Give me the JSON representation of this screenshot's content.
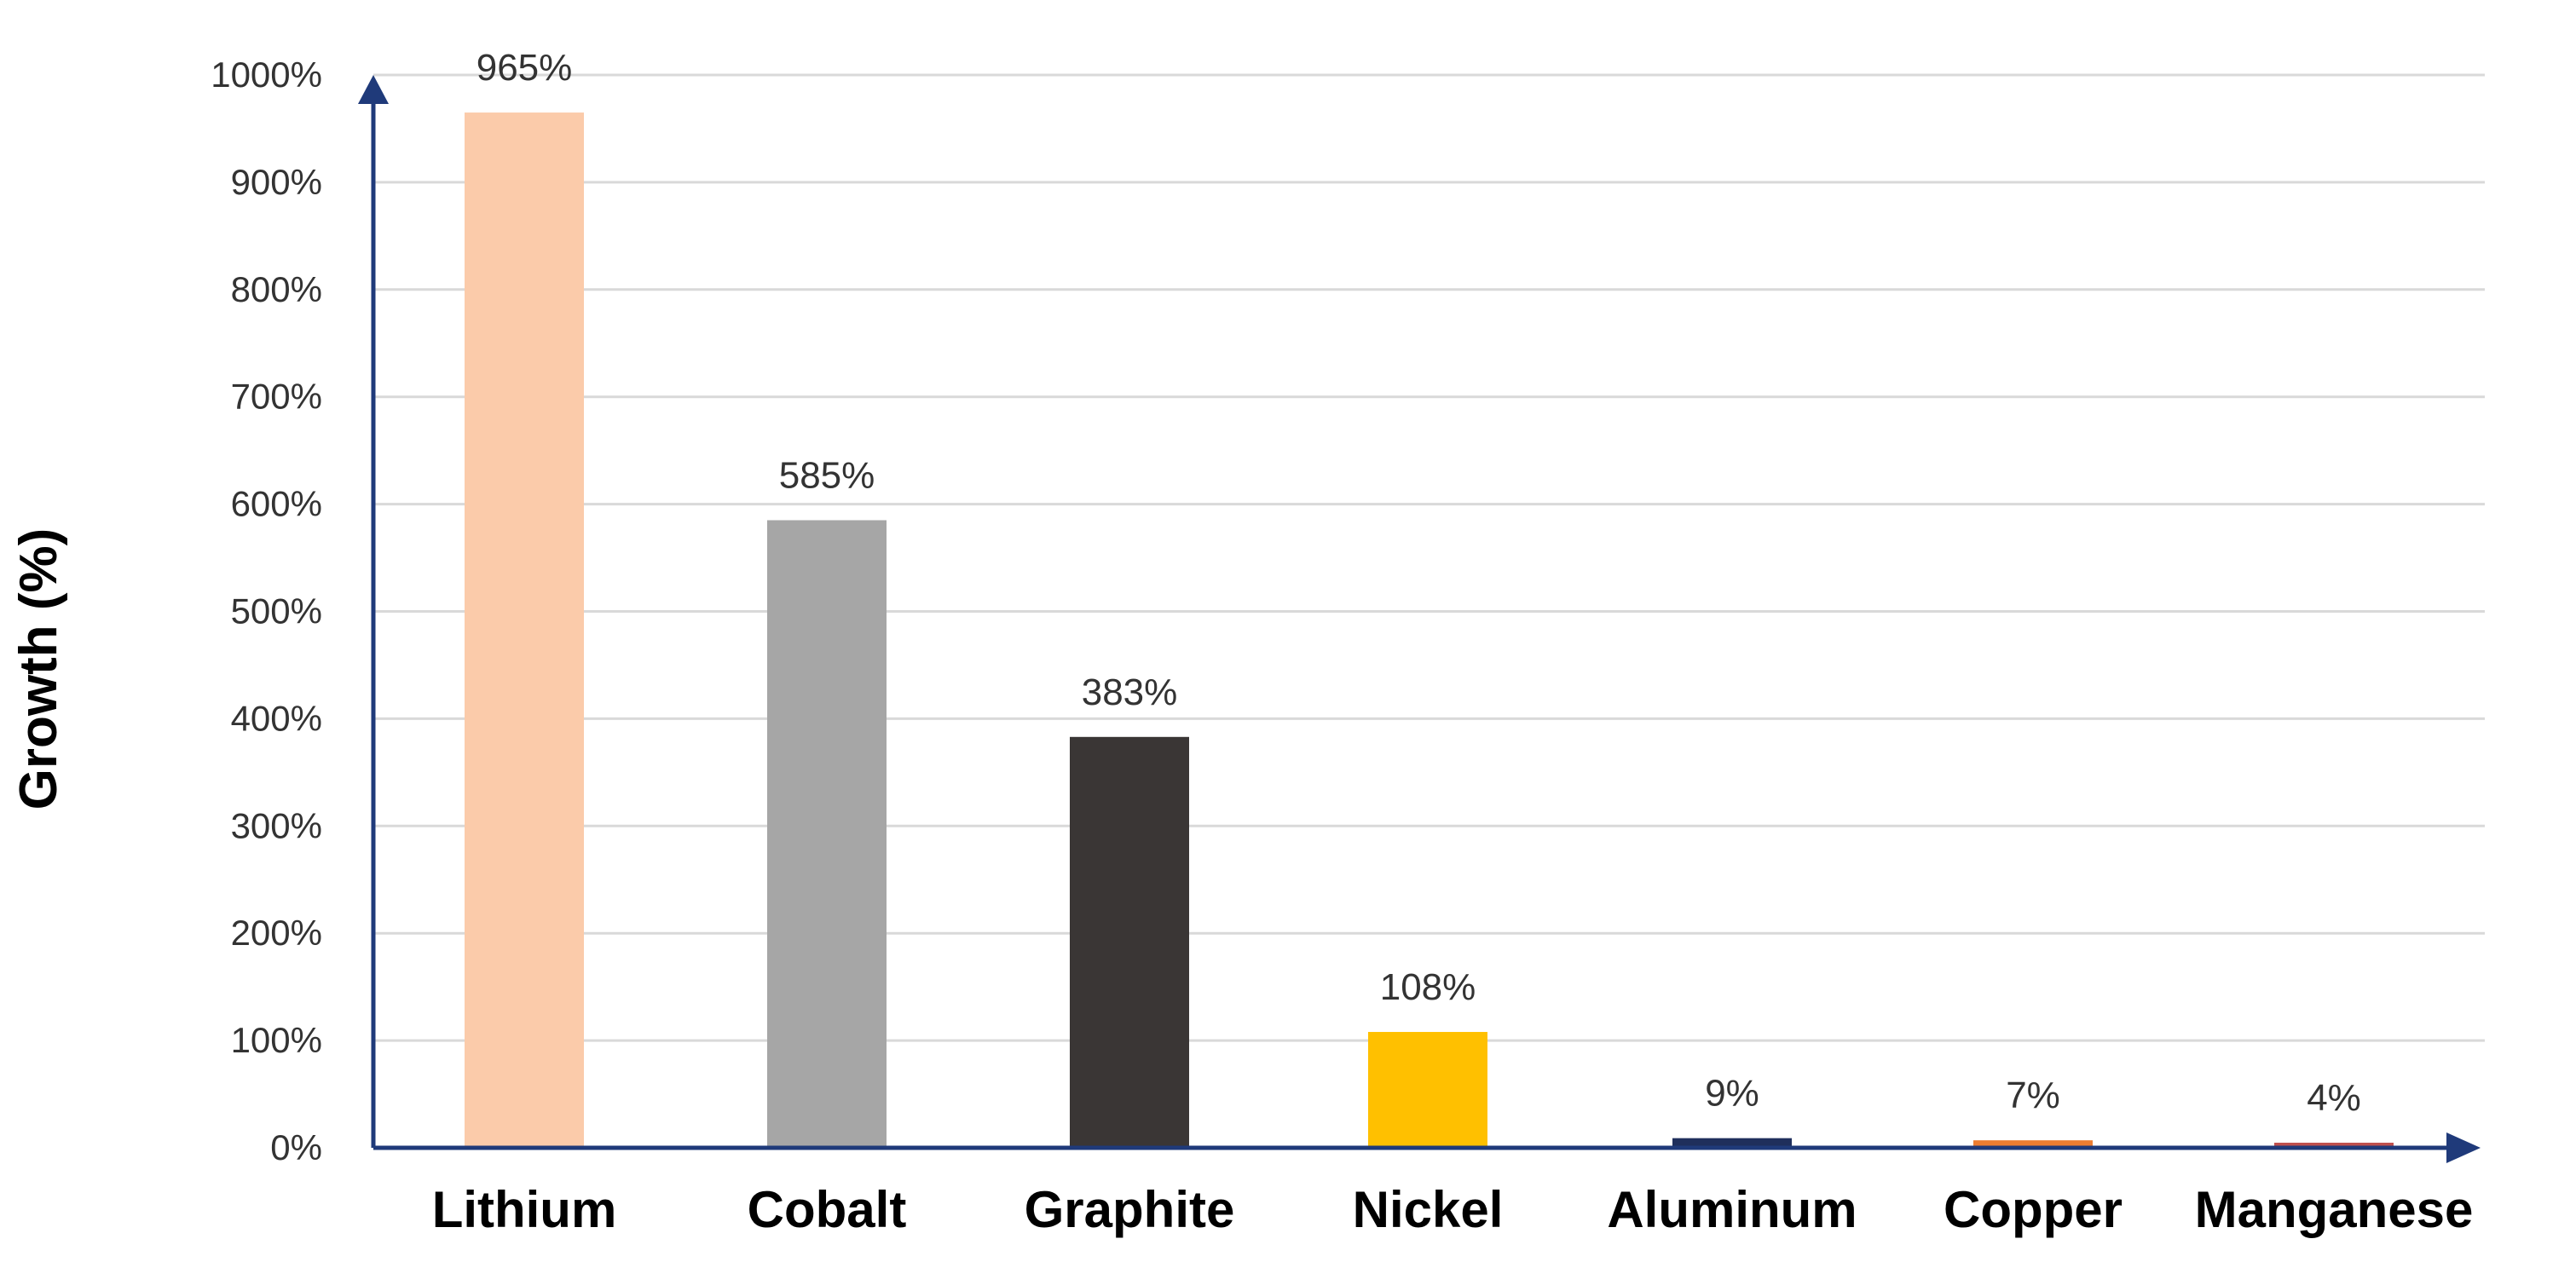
{
  "chart_data": {
    "type": "bar",
    "title": "",
    "xlabel": "",
    "ylabel": "Growth (%)",
    "ylim": [
      0,
      1000
    ],
    "y_ticks": [
      0,
      100,
      200,
      300,
      400,
      500,
      600,
      700,
      800,
      900,
      1000
    ],
    "y_tick_labels": [
      "0%",
      "100%",
      "200%",
      "300%",
      "400%",
      "500%",
      "600%",
      "700%",
      "800%",
      "900%",
      "1000%"
    ],
    "grid": true,
    "categories": [
      "Lithium",
      "Cobalt",
      "Graphite",
      "Nickel",
      "Aluminum",
      "Copper",
      "Manganese"
    ],
    "values": [
      965,
      585,
      383,
      108,
      9,
      7,
      4
    ],
    "data_labels": [
      "965%",
      "585%",
      "383%",
      "108%",
      "9%",
      "7%",
      "4%"
    ],
    "bar_colors": [
      "#FBCBAA",
      "#A6A6A6",
      "#3A3635",
      "#FFC000",
      "#1F2F5C",
      "#ED7D31",
      "#C0504D"
    ],
    "axis_color": "#1F3A7A",
    "grid_color": "#D9D9D9"
  }
}
